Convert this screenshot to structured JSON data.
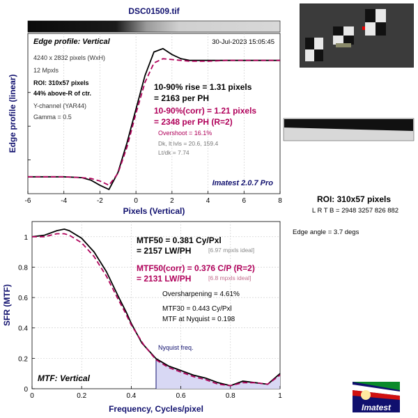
{
  "title": "DSC01509.tif",
  "colors": {
    "magenta": "#b0005a",
    "navy": "#10106e",
    "green": "#006000",
    "fill": "#d8d8f4"
  },
  "edge_panel": {
    "heading": "Edge profile: Vertical",
    "timestamp": "30-Jul-2023 15:05:45",
    "info_lines": [
      "4240 x 2832 pixels (WxH)",
      "12 Mpxls"
    ],
    "roi_line1": "ROI: 310x57 pixels",
    "roi_line2": "44% above-R of ctr.",
    "channel": "Y-channel  (YAR44)",
    "gamma": "Gamma = 0.5",
    "rise1": "10-90% rise = 1.31 pixels",
    "rise2": "= 2163 per PH",
    "corr1": "10-90%(corr) = 1.21 pixels",
    "corr2": "= 2348 per PH  (R=2)",
    "overshoot": "Overshoot = 16.1%",
    "dk": "Dk, lt lvls = 20.6, 159.4",
    "ltdk": "Lt/dk = 7.74",
    "brand": "Imatest 2.0.7 Pro"
  },
  "mtf_panel": {
    "heading": "MTF: Vertical",
    "mtf50_1": "MTF50 = 0.381 Cy/Pxl",
    "mtf50_2": "= 2157 LW/PH",
    "mtf50_ideal": "[6.97 mpxls ideal]",
    "corr1": "MTF50(corr) = 0.376 C/P  (R=2)",
    "corr2": "= 2131 LW/PH",
    "corr_ideal": "[6.8 mpxls ideal]",
    "oversharp": "Oversharpening = 4.61%",
    "mtf30": "MTF30 = 0.443 Cy/Pxl",
    "nyq_val": "MTF at Nyquist = 0.198",
    "nyq_label": "Nyquist freq."
  },
  "side": {
    "roi": "ROI: 310x57 pixels",
    "lrtb": "L R  T B = 2948 3257  826 882",
    "angle": "Edge angle = 3.7 degs",
    "logo_text": "Imatest"
  },
  "chart_data": [
    {
      "type": "line",
      "xlabel": "Pixels (Vertical)",
      "ylabel": "Edge profile (linear)",
      "xlim": [
        -6,
        8
      ],
      "xticks": [
        -6,
        -4,
        -2,
        0,
        2,
        4,
        6,
        8
      ],
      "series": [
        {
          "x": [
            -6,
            -5,
            -4,
            -3,
            -2.5,
            -2,
            -1.5,
            -1,
            -0.5,
            0,
            0.5,
            1,
            1.5,
            2,
            2.5,
            3,
            4,
            5,
            6,
            7,
            8
          ],
          "values": [
            20,
            20,
            20,
            19,
            16,
            10,
            5,
            25,
            60,
            100,
            140,
            168,
            172,
            165,
            160,
            158,
            158,
            158,
            158,
            158,
            158
          ]
        },
        {
          "x": [
            -6,
            -5,
            -4,
            -3,
            -2.5,
            -2,
            -1.5,
            -1,
            -0.5,
            0,
            0.5,
            1,
            1.5,
            2,
            2.5,
            3,
            4,
            5,
            6,
            7,
            8
          ],
          "values": [
            20,
            20,
            20,
            19,
            18,
            15,
            10,
            24,
            55,
            95,
            132,
            155,
            160,
            159,
            158,
            157,
            157,
            158,
            158,
            158,
            158
          ]
        }
      ]
    },
    {
      "type": "line",
      "xlabel": "Frequency, Cycles/pixel",
      "ylabel": "SFR (MTF)",
      "xlim": [
        0,
        1
      ],
      "ylim": [
        0,
        1.1
      ],
      "xticks": [
        0,
        0.2,
        0.4,
        0.6,
        0.8,
        1
      ],
      "yticks": [
        0,
        0.2,
        0.4,
        0.6,
        0.8,
        1
      ],
      "series": [
        {
          "x": [
            0,
            0.05,
            0.1,
            0.13,
            0.15,
            0.2,
            0.25,
            0.3,
            0.35,
            0.381,
            0.4,
            0.443,
            0.5,
            0.55,
            0.6,
            0.65,
            0.7,
            0.75,
            0.8,
            0.85,
            0.9,
            0.95,
            1
          ],
          "values": [
            1,
            1.01,
            1.04,
            1.05,
            1.04,
            0.99,
            0.9,
            0.77,
            0.6,
            0.5,
            0.43,
            0.3,
            0.198,
            0.15,
            0.12,
            0.09,
            0.07,
            0.04,
            0.02,
            0.05,
            0.04,
            0.03,
            0.1
          ]
        },
        {
          "x": [
            0,
            0.05,
            0.1,
            0.13,
            0.15,
            0.2,
            0.25,
            0.3,
            0.35,
            0.376,
            0.4,
            0.45,
            0.5,
            0.55,
            0.6,
            0.65,
            0.7,
            0.75,
            0.8,
            0.85,
            0.9,
            0.95,
            1
          ],
          "values": [
            1,
            1.0,
            1.02,
            1.02,
            1.01,
            0.96,
            0.87,
            0.74,
            0.58,
            0.5,
            0.42,
            0.29,
            0.19,
            0.14,
            0.11,
            0.08,
            0.06,
            0.03,
            0.02,
            0.04,
            0.04,
            0.03,
            0.09
          ]
        }
      ]
    }
  ]
}
